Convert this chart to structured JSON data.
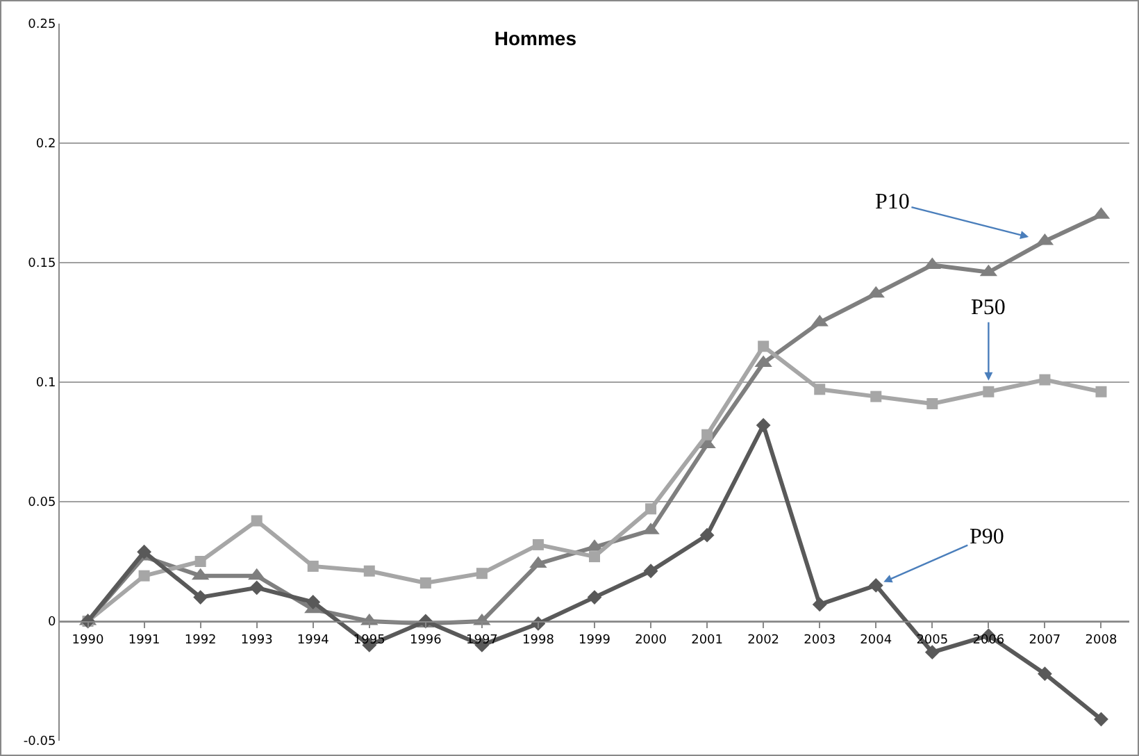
{
  "chart_data": {
    "type": "line",
    "title": "Hommes",
    "categories": [
      "1990",
      "1991",
      "1992",
      "1993",
      "1994",
      "1995",
      "1996",
      "1997",
      "1998",
      "1999",
      "2000",
      "2001",
      "2002",
      "2003",
      "2004",
      "2005",
      "2006",
      "2007",
      "2008"
    ],
    "series": [
      {
        "color": "#7f7f7f",
        "marker": "triangle",
        "values": [
          0,
          0.027,
          0.019,
          0.019,
          0.005,
          0,
          -0.001,
          0,
          0.024,
          0.031,
          0.038,
          0.074,
          0.108,
          0.125,
          0.137,
          0.149,
          0.146,
          0.159,
          0.17
        ]
      },
      {
        "color": "#a6a6a6",
        "marker": "square",
        "values": [
          0,
          0.019,
          0.025,
          0.042,
          0.023,
          0.021,
          0.016,
          0.02,
          0.032,
          0.027,
          0.047,
          0.078,
          0.115,
          0.097,
          0.094,
          0.091,
          0.096,
          0.101,
          0.096
        ]
      },
      {
        "color": "#595959",
        "marker": "diamond",
        "values": [
          0,
          0.029,
          0.01,
          0.014,
          0.008,
          -0.01,
          0,
          -0.01,
          -0.001,
          0.01,
          0.021,
          0.036,
          0.082,
          0.007,
          0.015,
          -0.013,
          -0.006,
          -0.022,
          -0.041
        ]
      }
    ],
    "annotations": [
      {
        "text": "P10",
        "x": "2007",
        "y": 0.159
      },
      {
        "text": "P50",
        "x": "2006",
        "y": 0.096
      },
      {
        "text": "P90",
        "x": "2004",
        "y": 0.015
      }
    ],
    "ylim": [
      -0.05,
      0.25
    ],
    "yticks": [
      -0.05,
      0,
      0.05,
      0.1,
      0.15,
      0.2,
      0.25
    ],
    "grid": "y",
    "line_style": "solid"
  }
}
